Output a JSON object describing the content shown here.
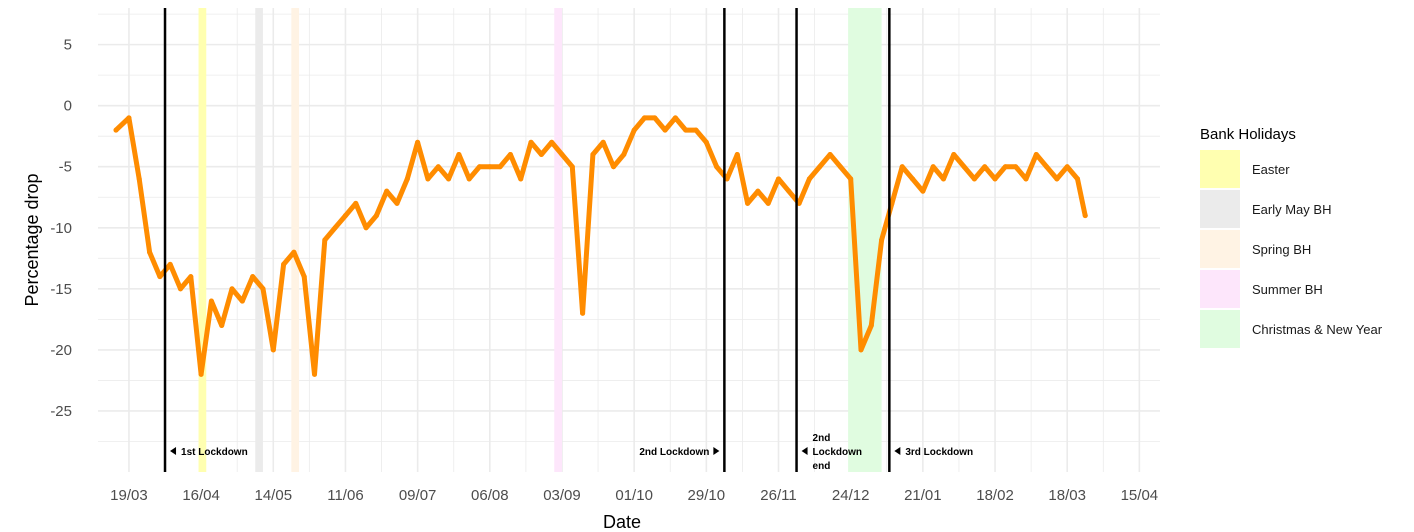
{
  "chart_data": {
    "type": "line",
    "xlabel": "Date",
    "ylabel": "Percentage drop",
    "ylim": [
      -30,
      8
    ],
    "y_ticks": [
      5,
      0,
      -5,
      -10,
      -15,
      -20,
      -25
    ],
    "x_tick_labels": [
      "19/03",
      "16/04",
      "14/05",
      "11/06",
      "09/07",
      "06/08",
      "03/09",
      "01/10",
      "29/10",
      "26/11",
      "24/12",
      "21/01",
      "18/02",
      "18/03",
      "15/04"
    ],
    "x_tick_days": [
      0,
      28,
      56,
      84,
      112,
      140,
      168,
      196,
      224,
      252,
      280,
      308,
      336,
      364,
      392
    ],
    "xlim": [
      -12,
      400
    ],
    "grid": true,
    "legend_placement": "right",
    "line_color": "#FF8C00",
    "series": [
      {
        "x": [
          -5,
          0,
          4,
          8,
          12,
          16,
          20,
          24,
          28,
          32,
          36,
          40,
          44,
          48,
          52,
          56,
          60,
          64,
          68,
          72,
          76,
          80,
          84,
          88,
          92,
          96,
          100,
          104,
          108,
          112,
          116,
          120,
          124,
          128,
          132,
          136,
          140,
          144,
          148,
          152,
          156,
          160,
          164,
          168,
          172,
          176,
          180,
          184,
          188,
          192,
          196,
          200,
          204,
          208,
          212,
          216,
          220,
          224,
          228,
          232,
          236,
          240,
          244,
          248,
          252,
          256,
          260,
          264,
          268,
          272,
          276,
          280,
          284,
          288,
          292,
          296,
          300,
          304,
          308,
          312,
          316,
          320,
          324,
          328,
          332,
          336,
          340,
          344,
          348,
          352,
          356,
          360,
          364,
          368,
          371
        ],
        "values": [
          -2,
          -1,
          -6,
          -12,
          -14,
          -13,
          -15,
          -14,
          -22,
          -16,
          -18,
          -15,
          -16,
          -14,
          -15,
          -20,
          -13,
          -12,
          -14,
          -22,
          -11,
          -10,
          -9,
          -8,
          -10,
          -9,
          -7,
          -8,
          -6,
          -3,
          -6,
          -5,
          -6,
          -4,
          -6,
          -5,
          -5,
          -5,
          -4,
          -6,
          -3,
          -4,
          -3,
          -4,
          -5,
          -17,
          -4,
          -3,
          -5,
          -4,
          -2,
          -1,
          -1,
          -2,
          -1,
          -2,
          -2,
          -3,
          -5,
          -6,
          -4,
          -8,
          -7,
          -8,
          -6,
          -7,
          -8,
          -6,
          -5,
          -4,
          -5,
          -6,
          -20,
          -18,
          -11,
          -8,
          -5,
          -6,
          -7,
          -5,
          -6,
          -4,
          -5,
          -6,
          -5,
          -6,
          -5,
          -5,
          -6,
          -4,
          -5,
          -6,
          -5,
          -6,
          -9
        ]
      }
    ],
    "lockdown_lines": [
      {
        "day": 14,
        "label": "1st Lockdown",
        "side": "right"
      },
      {
        "day": 231,
        "label": "2nd Lockdown",
        "side": "left"
      },
      {
        "day": 259,
        "label": "2nd\nLockdown\nend",
        "side": "right"
      },
      {
        "day": 295,
        "label": "3rd Lockdown",
        "side": "right"
      }
    ],
    "bank_holidays": [
      {
        "name": "Easter",
        "start": 27,
        "end": 30,
        "color": "#FFFFB0"
      },
      {
        "name": "Early May BH",
        "start": 49,
        "end": 52,
        "color": "#EBEBEB"
      },
      {
        "name": "Spring BH",
        "start": 63,
        "end": 66,
        "color": "#FFF3E4"
      },
      {
        "name": "Summer BH",
        "start": 165,
        "end": 168,
        "color": "#FDE6FB"
      },
      {
        "name": "Christmas & New Year",
        "start": 279,
        "end": 292,
        "color": "#E0FCE0"
      }
    ]
  },
  "legend": {
    "title": "Bank Holidays",
    "items": [
      {
        "label": "Easter",
        "color": "#FFFFB0"
      },
      {
        "label": "Early May BH",
        "color": "#EBEBEB"
      },
      {
        "label": "Spring BH",
        "color": "#FFF3E4"
      },
      {
        "label": "Summer BH",
        "color": "#FDE6FB"
      },
      {
        "label": "Christmas & New Year",
        "color": "#E0FCE0"
      }
    ]
  }
}
